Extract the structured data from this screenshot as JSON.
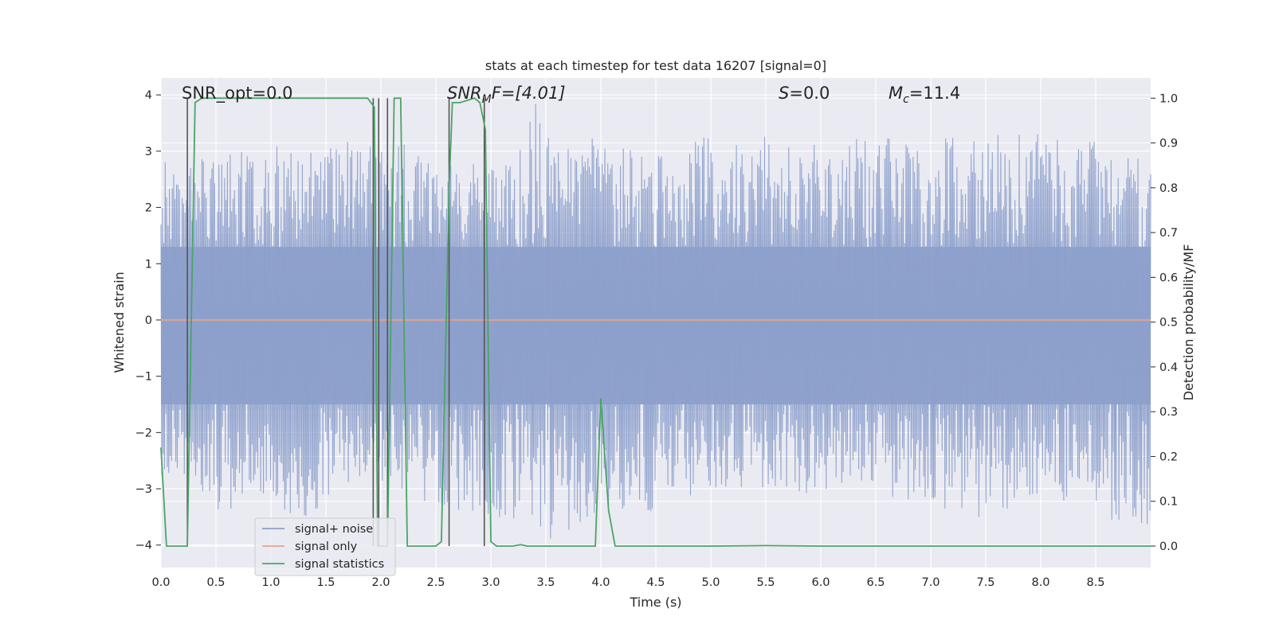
{
  "chart_data": {
    "type": "line",
    "title": "stats at each timestep for test data 16207 [signal=0]",
    "xlabel": "Time (s)",
    "ylabel": "Whitened strain",
    "ylabel_right": "Detection probability/MF",
    "xlim": [
      0.0,
      9.0
    ],
    "ylim": [
      -4.4,
      4.3
    ],
    "ylim_right": [
      -0.048,
      1.045
    ],
    "x_ticks": [
      0.0,
      0.5,
      1.0,
      1.5,
      2.0,
      2.5,
      3.0,
      3.5,
      4.0,
      4.5,
      5.0,
      5.5,
      6.0,
      6.5,
      7.0,
      7.5,
      8.0,
      8.5
    ],
    "x_tick_labels": [
      "0.0",
      "0.5",
      "1.0",
      "1.5",
      "2.0",
      "2.5",
      "3.0",
      "3.5",
      "4.0",
      "4.5",
      "5.0",
      "5.5",
      "6.0",
      "6.5",
      "7.0",
      "7.5",
      "8.0",
      "8.5"
    ],
    "y_ticks": [
      -4,
      -3,
      -2,
      -1,
      0,
      1,
      2,
      3,
      4
    ],
    "y_tick_labels": [
      "−4",
      "−3",
      "−2",
      "−1",
      "0",
      "1",
      "2",
      "3",
      "4"
    ],
    "y_ticks_right": [
      0.0,
      0.1,
      0.2,
      0.3,
      0.4,
      0.5,
      0.6,
      0.7,
      0.8,
      0.9,
      1.0
    ],
    "y_tick_labels_right": [
      "0.0",
      "0.1",
      "0.2",
      "0.3",
      "0.4",
      "0.5",
      "0.6",
      "0.7",
      "0.8",
      "0.9",
      "1.0"
    ],
    "annotations": {
      "snr_opt": "SNR_opt=0.0",
      "snr_mf": "SNR",
      "snr_mf_sub": "M",
      "snr_mf_rest": "F=[4.01]",
      "s_label": "S",
      "s_value": "=0.0",
      "mc_label": "M",
      "mc_sub": "c",
      "mc_value": "=11.4"
    },
    "legend": {
      "position": "lower-left",
      "entries": [
        "signal+ noise",
        "signal only",
        "signal statistics"
      ]
    },
    "colors": {
      "noise": "#8da0cb",
      "signal_only": "#e5a48b",
      "statistics": "#4aa564",
      "marker_lines": "#555555",
      "background": "#eaeaf2",
      "grid": "#ffffff"
    },
    "noise_series": {
      "name": "signal+ noise",
      "amplitude_envelope": [
        [
          0.0,
          3.0
        ],
        [
          0.1,
          2.7
        ],
        [
          0.2,
          3.2
        ],
        [
          0.3,
          2.8
        ],
        [
          0.5,
          3.0
        ],
        [
          0.8,
          3.0
        ],
        [
          1.0,
          3.2
        ],
        [
          1.4,
          3.2
        ],
        [
          1.7,
          3.2
        ],
        [
          2.0,
          3.2
        ],
        [
          2.3,
          3.3
        ],
        [
          2.6,
          2.9
        ],
        [
          3.0,
          2.7
        ],
        [
          3.3,
          3.2
        ],
        [
          3.4,
          3.9
        ],
        [
          3.6,
          3.0
        ],
        [
          4.0,
          3.3
        ],
        [
          4.5,
          2.9
        ],
        [
          5.0,
          3.3
        ],
        [
          5.5,
          3.3
        ],
        [
          6.0,
          3.1
        ],
        [
          6.5,
          3.3
        ],
        [
          7.0,
          3.2
        ],
        [
          7.5,
          3.3
        ],
        [
          8.0,
          3.3
        ],
        [
          8.5,
          3.2
        ],
        [
          9.0,
          3.0
        ]
      ],
      "negative_envelope": [
        [
          0.0,
          -3.0
        ],
        [
          0.3,
          -2.8
        ],
        [
          0.5,
          -3.5
        ],
        [
          1.0,
          -3.3
        ],
        [
          1.3,
          -3.6
        ],
        [
          1.6,
          -3.0
        ],
        [
          2.0,
          -2.9
        ],
        [
          2.5,
          -3.3
        ],
        [
          3.0,
          -3.5
        ],
        [
          3.4,
          -3.6
        ],
        [
          3.6,
          -4.0
        ],
        [
          4.0,
          -3.4
        ],
        [
          4.4,
          -3.5
        ],
        [
          5.0,
          -3.0
        ],
        [
          5.5,
          -3.1
        ],
        [
          5.8,
          -3.1
        ],
        [
          6.2,
          -3.0
        ],
        [
          7.0,
          -3.3
        ],
        [
          7.5,
          -3.6
        ],
        [
          8.0,
          -3.1
        ],
        [
          8.5,
          -3.5
        ],
        [
          9.0,
          -3.9
        ]
      ]
    },
    "signal_only_series": {
      "name": "signal only",
      "x": [
        0.0,
        9.0
      ],
      "y": [
        0.0,
        0.0
      ]
    },
    "statistics_series": {
      "name": "signal statistics",
      "axis": "right",
      "x": [
        0.0,
        0.05,
        0.24,
        0.31,
        0.37,
        0.42,
        0.5,
        1.0,
        1.5,
        1.88,
        1.94,
        1.97,
        2.03,
        2.06,
        2.12,
        2.18,
        2.24,
        2.3,
        2.5,
        2.55,
        2.62,
        2.65,
        2.72,
        2.85,
        2.9,
        2.95,
        3.0,
        3.05,
        3.2,
        3.27,
        3.33,
        3.5,
        3.95,
        4.0,
        4.07,
        4.13,
        4.3,
        5.0,
        5.5,
        6.0,
        7.0,
        8.0,
        9.0
      ],
      "y": [
        0.22,
        0.0,
        0.0,
        0.99,
        1.0,
        1.0,
        1.0,
        1.0,
        1.0,
        1.0,
        0.98,
        0.0,
        0.0,
        0.0,
        1.0,
        1.0,
        0.0,
        0.0,
        0.0,
        0.01,
        0.8,
        0.99,
        0.99,
        1.0,
        0.99,
        0.93,
        0.01,
        0.0,
        0.0,
        0.003,
        0.0,
        0.0,
        0.0,
        0.33,
        0.08,
        0.0,
        0.0,
        0.0,
        0.001,
        0.0,
        0.0,
        0.0,
        0.0
      ]
    },
    "marker_lines_x": [
      0.24,
      1.93,
      1.98,
      2.06,
      2.62,
      2.94
    ]
  }
}
